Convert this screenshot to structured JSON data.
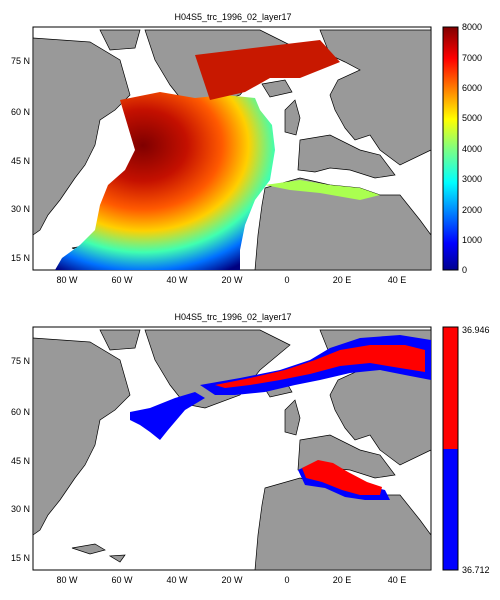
{
  "panels": [
    {
      "title": "H04S5_trc_1996_02_layer17",
      "lat_ticks": [
        "15 N",
        "30 N",
        "45 N",
        "60 N",
        "75 N"
      ],
      "lon_ticks": [
        "80 W",
        "60 W",
        "40 W",
        "20 W",
        "0",
        "20 E",
        "40 E"
      ],
      "colorbar": {
        "ticks": [
          "0",
          "1000",
          "2000",
          "3000",
          "4000",
          "5000",
          "6000",
          "7000",
          "8000"
        ],
        "range": [
          0,
          8000
        ],
        "colormap": "jet"
      }
    },
    {
      "title": "H04S5_trc_1996_02_layer17",
      "lat_ticks": [
        "15 N",
        "30 N",
        "45 N",
        "60 N",
        "75 N"
      ],
      "lon_ticks": [
        "80 W",
        "60 W",
        "40 W",
        "20 W",
        "0",
        "20 E",
        "40 E"
      ],
      "colorbar": {
        "ticks": [
          "36.946",
          "36.712"
        ],
        "colors": [
          "#ff0000",
          "#0000ff"
        ]
      }
    }
  ],
  "colors": {
    "land": "#999999",
    "nodata": "#ffffff",
    "coast": "#000000"
  }
}
